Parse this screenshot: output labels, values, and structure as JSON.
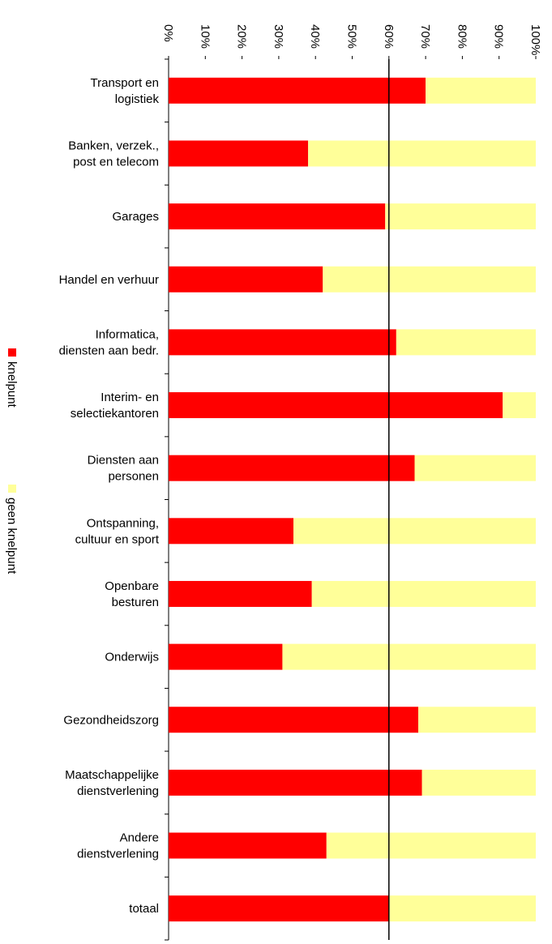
{
  "chart_data": {
    "type": "stacked_barh",
    "categories": [
      "Transport en\nlogistiek",
      "Banken, verzek.,\npost en telecom",
      "Garages",
      "Handel en verhuur",
      "Informatica,\ndiensten aan bedr.",
      "Interim- en\nselectiekantoren",
      "Diensten aan\npersonen",
      "Ontspanning,\ncultuur en sport",
      "Openbare\nbesturen",
      "Onderwijs",
      "Gezondheidszorg",
      "Maatschappelijke\ndienstverlening",
      "Andere\ndienstverlening",
      "totaal"
    ],
    "series": [
      {
        "name": "knelpunt",
        "color": "#ff0000",
        "values": [
          70,
          38,
          59,
          42,
          62,
          91,
          67,
          34,
          39,
          31,
          68,
          69,
          43,
          60
        ]
      },
      {
        "name": "geen knelpunt",
        "color": "#ffff99",
        "values": [
          30,
          62,
          41,
          58,
          38,
          9,
          33,
          66,
          61,
          69,
          32,
          31,
          57,
          40
        ]
      }
    ],
    "xlim": [
      0,
      100
    ],
    "xticks": [
      {
        "value": 0,
        "label": "0%"
      },
      {
        "value": 10,
        "label": "10%"
      },
      {
        "value": 20,
        "label": "20%"
      },
      {
        "value": 30,
        "label": "30%"
      },
      {
        "value": 40,
        "label": "40%"
      },
      {
        "value": 50,
        "label": "50%"
      },
      {
        "value": 60,
        "label": "60%"
      },
      {
        "value": 70,
        "label": "70%"
      },
      {
        "value": 80,
        "label": "80%"
      },
      {
        "value": 90,
        "label": "90%"
      },
      {
        "value": 100,
        "label": "100%"
      }
    ],
    "reference_line": 60,
    "legend": "left"
  }
}
